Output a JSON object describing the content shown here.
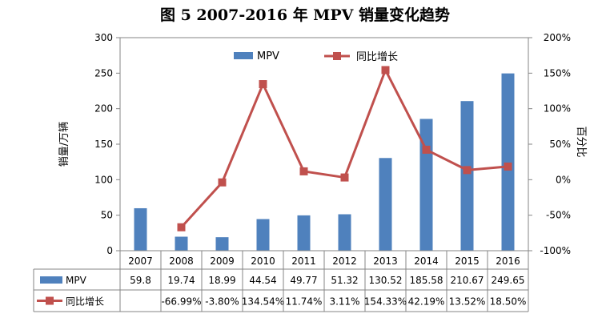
{
  "title": "图 5  2007-2016 年 MPV 销量变化趋势",
  "chart_data": {
    "type": "bar+line",
    "title": "图 5  2007-2016 年 MPV 销量变化趋势",
    "categories": [
      "2007",
      "2008",
      "2009",
      "2010",
      "2011",
      "2012",
      "2013",
      "2014",
      "2015",
      "2016"
    ],
    "series": [
      {
        "name": "MPV",
        "type": "bar",
        "axis": "left",
        "color": "#4F81BD",
        "values": [
          59.8,
          19.74,
          18.99,
          44.54,
          49.77,
          51.32,
          130.52,
          185.58,
          210.67,
          249.65
        ],
        "labels": [
          "59.8",
          "19.74",
          "18.99",
          "44.54",
          "49.77",
          "51.32",
          "130.52",
          "185.58",
          "210.67",
          "249.65"
        ]
      },
      {
        "name": "同比增长",
        "type": "line",
        "axis": "right",
        "color": "#C0504D",
        "values": [
          null,
          -66.99,
          -3.8,
          134.54,
          11.74,
          3.11,
          154.33,
          42.19,
          13.52,
          18.5
        ],
        "labels": [
          "",
          "-66.99%",
          "-3.80%",
          "134.54%",
          "11.74%",
          "3.11%",
          "154.33%",
          "42.19%",
          "13.52%",
          "18.50%"
        ]
      }
    ],
    "ylabel": "销量/万辆",
    "y2label": "百分比",
    "ylim": [
      0,
      300
    ],
    "y2lim": [
      -100,
      200
    ],
    "yticks": [
      "0",
      "50",
      "100",
      "150",
      "200",
      "250",
      "300"
    ],
    "y2ticks": [
      "-100%",
      "-50%",
      "0%",
      "50%",
      "100%",
      "150%",
      "200%"
    ],
    "legend": "top-center",
    "grid": false,
    "data_table": true
  }
}
